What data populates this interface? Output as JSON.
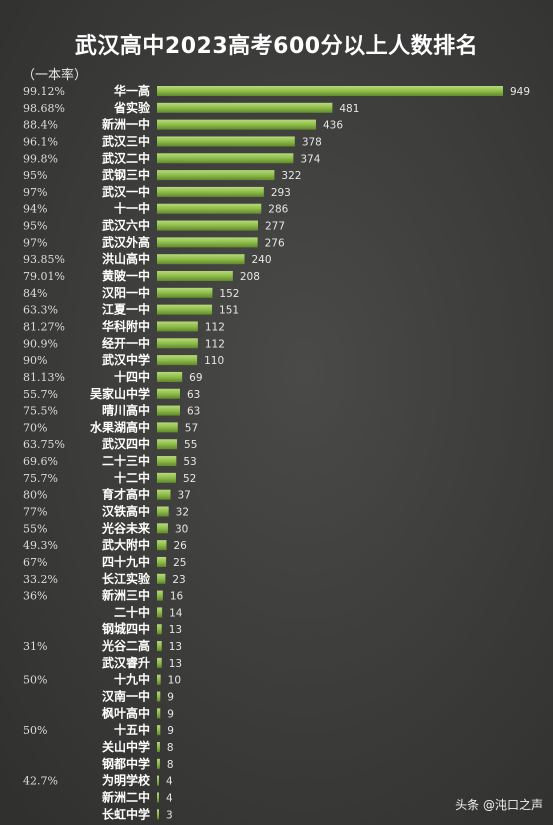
{
  "title": "武汉高中2023高考600分以上人数排名",
  "rate_header": "（一本率）",
  "watermark": "头条 @沌口之声",
  "chart_data": {
    "type": "bar",
    "orientation": "horizontal",
    "title": "武汉高中2023高考600分以上人数排名",
    "bar_color": "#8fbc4a",
    "categories": [
      "华一高",
      "省实验",
      "新洲一中",
      "武汉三中",
      "武汉二中",
      "武钢三中",
      "武汉一中",
      "十一中",
      "武汉六中",
      "武汉外高",
      "洪山高中",
      "黄陂一中",
      "汉阳一中",
      "江夏一中",
      "华科附中",
      "经开一中",
      "武汉中学",
      "十四中",
      "吴家山中学",
      "晴川高中",
      "水果湖高中",
      "武汉四中",
      "二十三中",
      "十二中",
      "育才高中",
      "汉铁高中",
      "光谷未来",
      "武大附中",
      "四十九中",
      "长江实验",
      "新洲三中",
      "二十中",
      "钢城四中",
      "光谷二高",
      "武汉睿升",
      "十九中",
      "汉南一中",
      "枫叶高中",
      "十五中",
      "关山中学",
      "钢都中学",
      "为明学校",
      "新洲二中",
      "长虹中学"
    ],
    "values": [
      949,
      481,
      436,
      378,
      374,
      322,
      293,
      286,
      277,
      276,
      240,
      208,
      152,
      151,
      112,
      112,
      110,
      69,
      63,
      63,
      57,
      55,
      53,
      52,
      37,
      32,
      30,
      26,
      25,
      23,
      16,
      14,
      13,
      13,
      13,
      10,
      9,
      9,
      9,
      8,
      8,
      4,
      4,
      3
    ],
    "rates": [
      "99.12%",
      "98.68%",
      "88.4%",
      "96.1%",
      "99.8%",
      "95%",
      "97%",
      "94%",
      "95%",
      "97%",
      "93.85%",
      "79.01%",
      "84%",
      "63.3%",
      "81.27%",
      "90.9%",
      "90%",
      "81.13%",
      "55.7%",
      "75.5%",
      "70%",
      "63.75%",
      "69.6%",
      "75.7%",
      "80%",
      "77%",
      "55%",
      "49.3%",
      "67%",
      "33.2%",
      "36%",
      "",
      "",
      "31%",
      "",
      "50%",
      "",
      "",
      "50%",
      "",
      "",
      "42.7%",
      "",
      ""
    ],
    "xlim": [
      0,
      949
    ]
  }
}
